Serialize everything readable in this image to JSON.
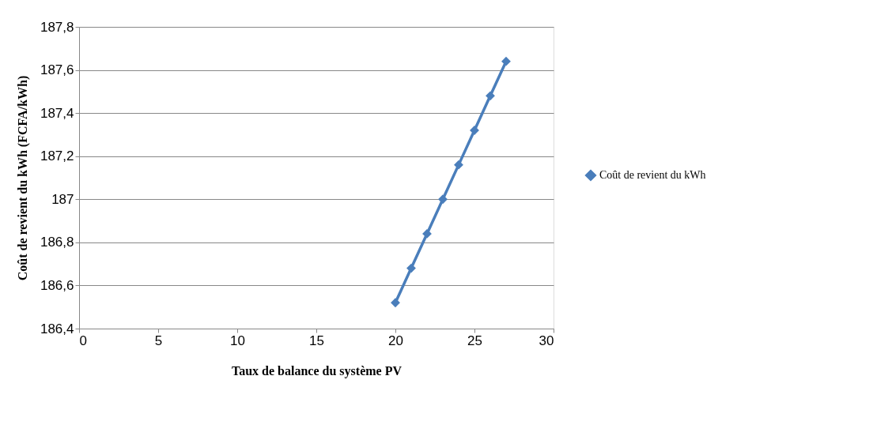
{
  "chart_data": {
    "type": "line",
    "xlabel": "Taux de balance du système PV",
    "ylabel": "Coût de revient du kWh (FCFA/kWh)",
    "x": [
      20,
      21,
      22,
      23,
      24,
      25,
      26,
      27
    ],
    "series": [
      {
        "name": "Coût de revient du kWh",
        "color": "#4a7ebb",
        "values": [
          186.52,
          186.68,
          186.84,
          187.0,
          187.16,
          187.32,
          187.48,
          187.64
        ]
      }
    ],
    "xlim": [
      0,
      30
    ],
    "xticks": [
      0,
      5,
      10,
      15,
      20,
      25,
      30
    ],
    "ylim": [
      186.4,
      187.8
    ],
    "yticks": [
      {
        "value": 186.4,
        "label": "186,4"
      },
      {
        "value": 186.6,
        "label": "186,6"
      },
      {
        "value": 186.8,
        "label": "186,8"
      },
      187,
      {
        "value": 187.2,
        "label": "187,2"
      },
      {
        "value": 187.4,
        "label": "187,4"
      },
      {
        "value": 187.6,
        "label": "187,6"
      },
      {
        "value": 187.8,
        "label": "187,8"
      }
    ],
    "grid": "y",
    "legend": "right",
    "marker": "diamond",
    "line_style": "solid"
  }
}
